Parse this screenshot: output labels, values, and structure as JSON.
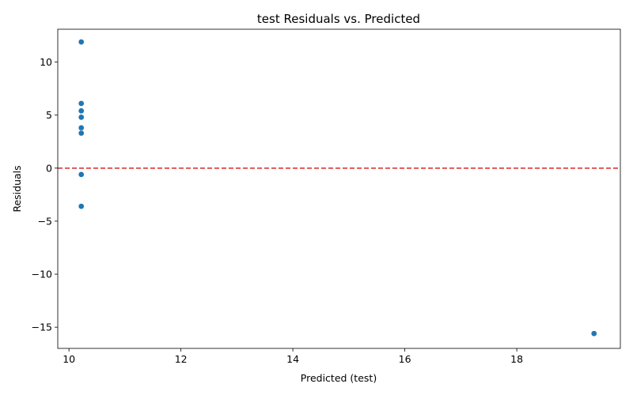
{
  "chart_data": {
    "type": "scatter",
    "title": "test Residuals vs. Predicted",
    "xlabel": "Predicted (test)",
    "ylabel": "Residuals",
    "xlim": [
      9.8,
      19.85
    ],
    "ylim": [
      -17,
      13.1
    ],
    "xticks": [
      10,
      12,
      14,
      16,
      18
    ],
    "yticks": [
      -15,
      -10,
      -5,
      0,
      5,
      10
    ],
    "grid": false,
    "series": [
      {
        "name": "residuals",
        "color": "#1f77b4",
        "points": [
          {
            "x": 10.22,
            "y": 11.9
          },
          {
            "x": 10.22,
            "y": 6.1
          },
          {
            "x": 10.22,
            "y": 5.4
          },
          {
            "x": 10.22,
            "y": 4.8
          },
          {
            "x": 10.22,
            "y": 3.8
          },
          {
            "x": 10.22,
            "y": 3.3
          },
          {
            "x": 10.22,
            "y": -0.6
          },
          {
            "x": 10.22,
            "y": -3.6
          },
          {
            "x": 19.38,
            "y": -15.6
          }
        ]
      }
    ],
    "reference_line": {
      "y": 0,
      "style": "dashed",
      "color": "#d62728"
    }
  }
}
